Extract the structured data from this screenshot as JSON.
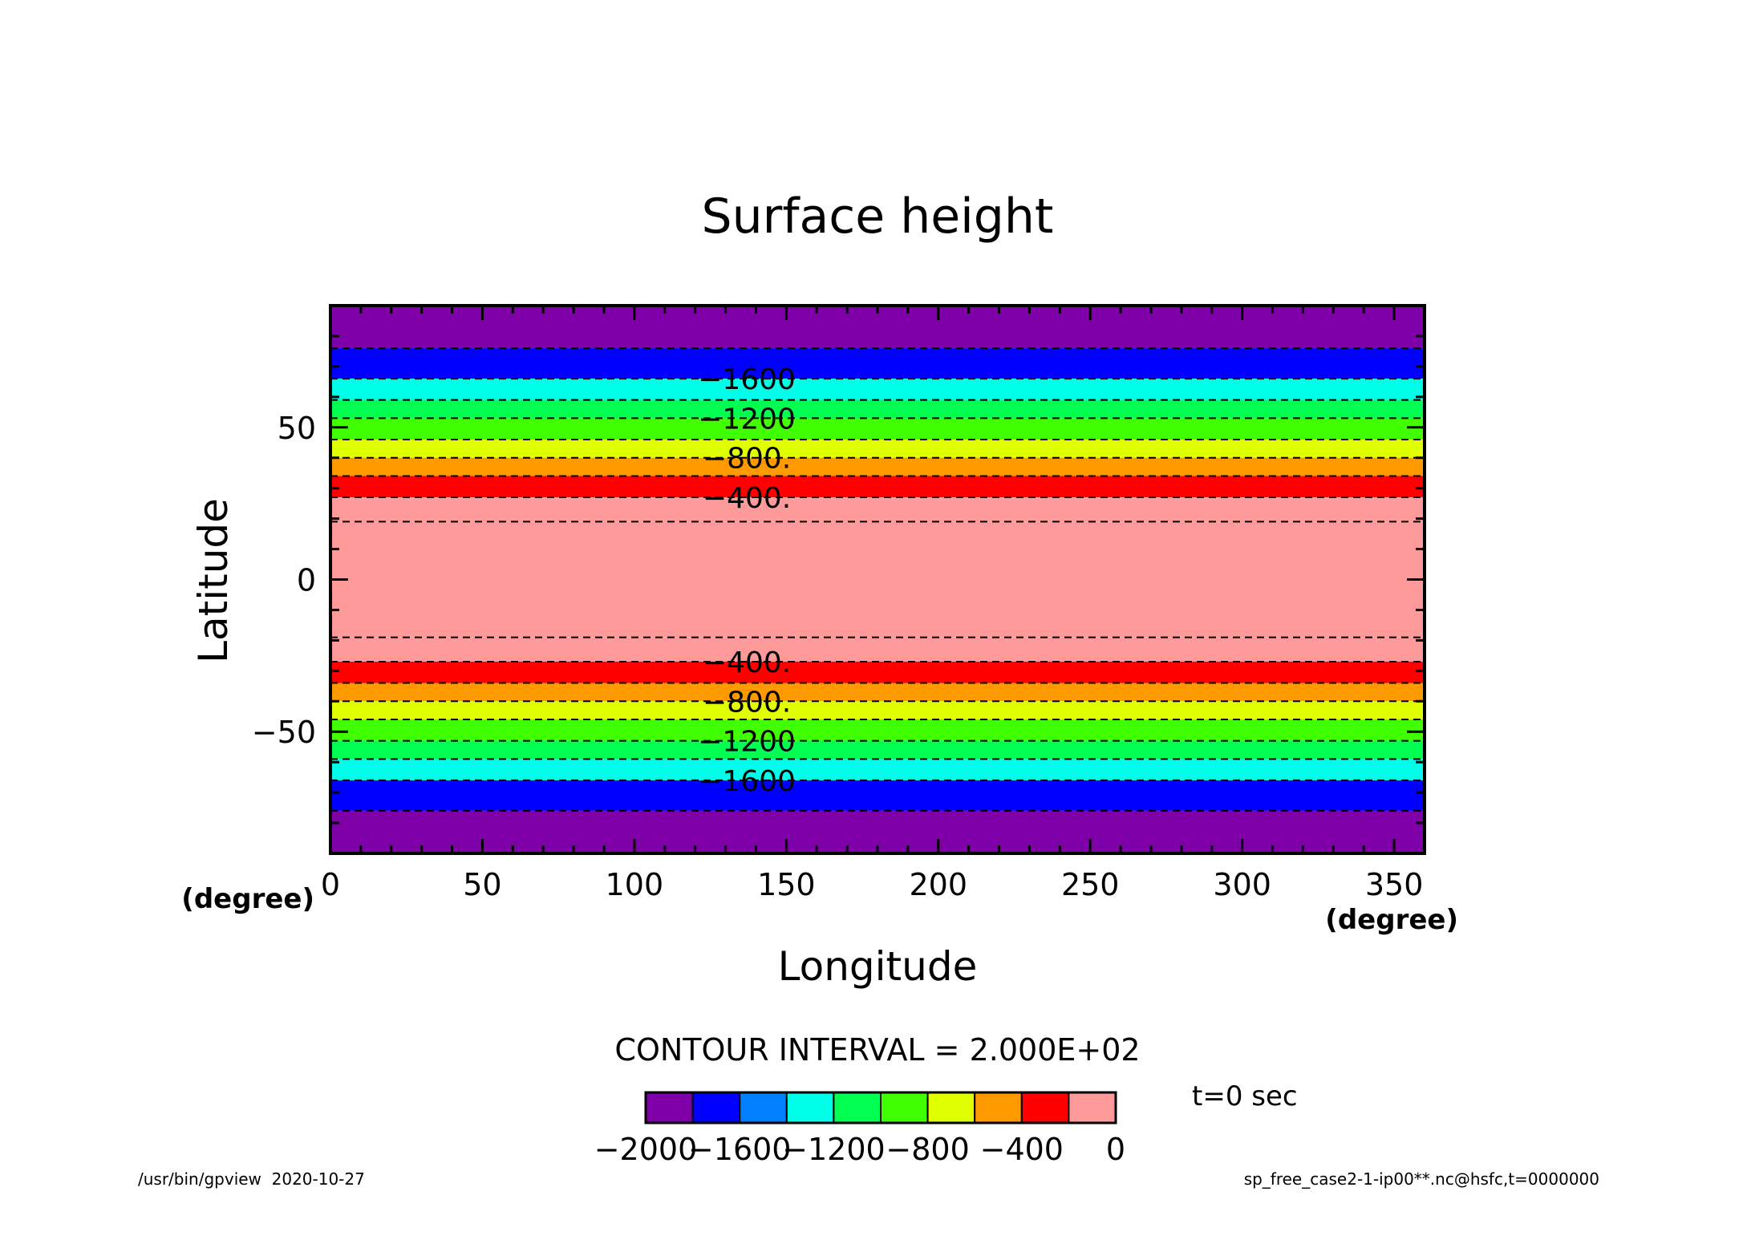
{
  "chart_data": {
    "type": "heatmap",
    "title": "Surface height",
    "xlabel": "Longitude",
    "ylabel": "Latitude",
    "x_unit": "(degree)",
    "y_unit": "(degree)",
    "xlim": [
      0,
      360
    ],
    "ylim": [
      -90,
      90
    ],
    "x_ticks": [
      0,
      50,
      100,
      150,
      200,
      250,
      300,
      350
    ],
    "y_ticks": [
      50,
      0,
      -50
    ],
    "x_tick_labels": [
      "0",
      "50",
      "100",
      "150",
      "200",
      "250",
      "300",
      "350"
    ],
    "y_tick_labels": [
      "50",
      "0",
      "−50"
    ],
    "bands": [
      {
        "lat_min": 76,
        "lat_max": 90,
        "level": -2000
      },
      {
        "lat_min": 66,
        "lat_max": 76,
        "level": -1800
      },
      {
        "lat_min": 59,
        "lat_max": 66,
        "level": -1400
      },
      {
        "lat_min": 53,
        "lat_max": 59,
        "level": -1200
      },
      {
        "lat_min": 46,
        "lat_max": 53,
        "level": -1000
      },
      {
        "lat_min": 40,
        "lat_max": 46,
        "level": -800
      },
      {
        "lat_min": 34,
        "lat_max": 40,
        "level": -600
      },
      {
        "lat_min": 27,
        "lat_max": 34,
        "level": -400
      },
      {
        "lat_min": 19,
        "lat_max": 27,
        "level": -200
      },
      {
        "lat_min": -19,
        "lat_max": 19,
        "level": 0
      },
      {
        "lat_min": -27,
        "lat_max": -19,
        "level": -200
      },
      {
        "lat_min": -34,
        "lat_max": -27,
        "level": -400
      },
      {
        "lat_min": -40,
        "lat_max": -34,
        "level": -600
      },
      {
        "lat_min": -46,
        "lat_max": -40,
        "level": -800
      },
      {
        "lat_min": -53,
        "lat_max": -46,
        "level": -1000
      },
      {
        "lat_min": -59,
        "lat_max": -53,
        "level": -1200
      },
      {
        "lat_min": -66,
        "lat_max": -59,
        "level": -1400
      },
      {
        "lat_min": -76,
        "lat_max": -66,
        "level": -1800
      },
      {
        "lat_min": -90,
        "lat_max": -76,
        "level": -2000
      }
    ],
    "contour_lats": [
      76,
      66,
      59,
      53,
      46,
      40,
      34,
      27,
      19,
      -19,
      -27,
      -34,
      -40,
      -46,
      -53,
      -59,
      -66,
      -76
    ],
    "contour_labels": [
      {
        "lat": 66,
        "text": "−1600"
      },
      {
        "lat": 53,
        "text": "−1200"
      },
      {
        "lat": 40,
        "text": "−800."
      },
      {
        "lat": 27,
        "text": "−400."
      },
      {
        "lat": -27,
        "text": "−400."
      },
      {
        "lat": -40,
        "text": "−800."
      },
      {
        "lat": -53,
        "text": "−1200"
      },
      {
        "lat": -66,
        "text": "−1600"
      }
    ],
    "contour_interval_text": "CONTOUR INTERVAL = 2.000E+02",
    "colorbar": {
      "bins": [
        {
          "min": -2000,
          "max": -1800,
          "color": "#7f00a8"
        },
        {
          "min": -1800,
          "max": -1600,
          "color": "#0000ff"
        },
        {
          "min": -1600,
          "max": -1400,
          "color": "#0080ff"
        },
        {
          "min": -1400,
          "max": -1200,
          "color": "#00ffe8"
        },
        {
          "min": -1200,
          "max": -1000,
          "color": "#00ff50"
        },
        {
          "min": -1000,
          "max": -800,
          "color": "#40ff00"
        },
        {
          "min": -800,
          "max": -600,
          "color": "#e0ff00"
        },
        {
          "min": -600,
          "max": -400,
          "color": "#ff9900"
        },
        {
          "min": -400,
          "max": -200,
          "color": "#ff0000"
        },
        {
          "min": -200,
          "max": 0,
          "color": "#ff9a9a"
        }
      ],
      "tick_labels": [
        "−2000",
        "−1600",
        "−1200",
        "−800",
        "−400",
        "0"
      ]
    },
    "time_text": "t=0 sec",
    "footer_left": "/usr/bin/gpview  2020-10-27",
    "footer_right": "sp_free_case2-1-ip00**.nc@hsfc,t=0000000"
  }
}
